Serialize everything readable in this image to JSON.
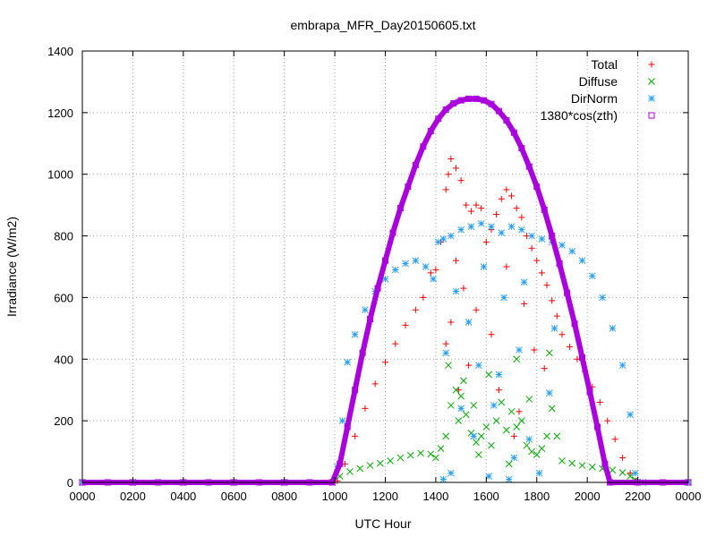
{
  "chart_data": {
    "type": "scatter",
    "title": "embrapa_MFR_Day20150605.txt",
    "xlabel": "UTC Hour",
    "ylabel": "Irradiance (W/m2)",
    "xlim": [
      0,
      24
    ],
    "ylim": [
      0,
      1400
    ],
    "x_ticks": [
      {
        "value": 0,
        "label": "0000"
      },
      {
        "value": 2,
        "label": "0200"
      },
      {
        "value": 4,
        "label": "0400"
      },
      {
        "value": 6,
        "label": "0600"
      },
      {
        "value": 8,
        "label": "0800"
      },
      {
        "value": 10,
        "label": "1000"
      },
      {
        "value": 12,
        "label": "1200"
      },
      {
        "value": 14,
        "label": "1400"
      },
      {
        "value": 16,
        "label": "1600"
      },
      {
        "value": 18,
        "label": "1800"
      },
      {
        "value": 20,
        "label": "2000"
      },
      {
        "value": 22,
        "label": "2200"
      },
      {
        "value": 24,
        "label": "0000"
      }
    ],
    "y_ticks": [
      0,
      200,
      400,
      600,
      800,
      1000,
      1200,
      1400
    ],
    "grid": true,
    "legend_position": "top-right",
    "series": [
      {
        "name": "Total",
        "marker": "plus",
        "color": "#ff0000",
        "points": [
          [
            0,
            0
          ],
          [
            2,
            0
          ],
          [
            4,
            0
          ],
          [
            6,
            0
          ],
          [
            8,
            0
          ],
          [
            9.9,
            0
          ],
          [
            10.1,
            5
          ],
          [
            10.4,
            60
          ],
          [
            10.8,
            150
          ],
          [
            11.2,
            240
          ],
          [
            11.6,
            320
          ],
          [
            12.0,
            390
          ],
          [
            12.4,
            450
          ],
          [
            12.8,
            510
          ],
          [
            13.2,
            560
          ],
          [
            13.5,
            600
          ],
          [
            13.8,
            680
          ],
          [
            14.0,
            690
          ],
          [
            14.2,
            780
          ],
          [
            14.4,
            950
          ],
          [
            14.5,
            1000
          ],
          [
            14.6,
            1050
          ],
          [
            14.8,
            1020
          ],
          [
            15.0,
            980
          ],
          [
            15.2,
            900
          ],
          [
            15.4,
            880
          ],
          [
            15.6,
            900
          ],
          [
            15.8,
            890
          ],
          [
            16.0,
            780
          ],
          [
            16.2,
            820
          ],
          [
            16.4,
            870
          ],
          [
            16.6,
            920
          ],
          [
            16.8,
            950
          ],
          [
            17.0,
            930
          ],
          [
            17.2,
            890
          ],
          [
            17.4,
            860
          ],
          [
            17.6,
            800
          ],
          [
            17.8,
            760
          ],
          [
            18.0,
            720
          ],
          [
            18.2,
            680
          ],
          [
            18.4,
            640
          ],
          [
            18.6,
            590
          ],
          [
            18.8,
            540
          ],
          [
            19.0,
            480
          ],
          [
            19.3,
            440
          ],
          [
            19.6,
            400
          ],
          [
            19.9,
            360
          ],
          [
            20.2,
            310
          ],
          [
            20.5,
            260
          ],
          [
            20.8,
            200
          ],
          [
            21.1,
            140
          ],
          [
            21.4,
            80
          ],
          [
            21.7,
            30
          ],
          [
            21.9,
            5
          ],
          [
            22.2,
            0
          ],
          [
            24,
            0
          ],
          [
            14.4,
            450
          ],
          [
            14.6,
            520
          ],
          [
            14.9,
            300
          ],
          [
            15.3,
            380
          ],
          [
            15.6,
            560
          ],
          [
            16.2,
            480
          ],
          [
            16.5,
            300
          ],
          [
            17.1,
            150
          ],
          [
            17.5,
            580
          ],
          [
            17.9,
            430
          ],
          [
            18.3,
            370
          ],
          [
            15.1,
            630
          ],
          [
            14.8,
            720
          ],
          [
            16.8,
            700
          ],
          [
            17.3,
            230
          ]
        ]
      },
      {
        "name": "Diffuse",
        "marker": "cross",
        "color": "#00aa00",
        "points": [
          [
            0,
            0
          ],
          [
            2,
            0
          ],
          [
            4,
            0
          ],
          [
            6,
            0
          ],
          [
            8,
            0
          ],
          [
            9.9,
            0
          ],
          [
            10.2,
            20
          ],
          [
            10.6,
            35
          ],
          [
            11.0,
            45
          ],
          [
            11.4,
            55
          ],
          [
            11.8,
            62
          ],
          [
            12.2,
            70
          ],
          [
            12.6,
            80
          ],
          [
            13.0,
            88
          ],
          [
            13.4,
            95
          ],
          [
            13.8,
            92
          ],
          [
            14.0,
            80
          ],
          [
            14.2,
            110
          ],
          [
            14.4,
            150
          ],
          [
            14.6,
            250
          ],
          [
            14.8,
            300
          ],
          [
            15.0,
            280
          ],
          [
            15.2,
            220
          ],
          [
            15.4,
            160
          ],
          [
            15.6,
            130
          ],
          [
            15.8,
            150
          ],
          [
            16.0,
            180
          ],
          [
            16.2,
            120
          ],
          [
            16.4,
            200
          ],
          [
            16.6,
            260
          ],
          [
            16.8,
            170
          ],
          [
            17.0,
            230
          ],
          [
            17.2,
            180
          ],
          [
            17.4,
            200
          ],
          [
            17.6,
            120
          ],
          [
            17.8,
            100
          ],
          [
            18.0,
            90
          ],
          [
            18.2,
            110
          ],
          [
            18.4,
            150
          ],
          [
            18.6,
            240
          ],
          [
            18.8,
            150
          ],
          [
            19.0,
            70
          ],
          [
            19.4,
            62
          ],
          [
            19.8,
            55
          ],
          [
            20.2,
            50
          ],
          [
            20.6,
            45
          ],
          [
            21.0,
            40
          ],
          [
            21.4,
            32
          ],
          [
            21.7,
            20
          ],
          [
            21.9,
            8
          ],
          [
            22.2,
            0
          ],
          [
            24,
            0
          ],
          [
            14.5,
            380
          ],
          [
            15.1,
            330
          ],
          [
            16.1,
            350
          ],
          [
            17.2,
            400
          ],
          [
            18.5,
            420
          ],
          [
            15.7,
            90
          ],
          [
            16.9,
            60
          ],
          [
            14.9,
            200
          ],
          [
            15.5,
            250
          ],
          [
            17.7,
            270
          ]
        ]
      },
      {
        "name": "DirNorm",
        "marker": "star",
        "color": "#2a9fef",
        "points": [
          [
            0,
            0
          ],
          [
            2,
            0
          ],
          [
            4,
            0
          ],
          [
            6,
            0
          ],
          [
            8,
            0
          ],
          [
            9.9,
            0
          ],
          [
            10.1,
            50
          ],
          [
            10.3,
            200
          ],
          [
            10.5,
            390
          ],
          [
            10.8,
            480
          ],
          [
            11.2,
            560
          ],
          [
            11.6,
            620
          ],
          [
            12.0,
            660
          ],
          [
            12.4,
            690
          ],
          [
            12.8,
            710
          ],
          [
            13.2,
            720
          ],
          [
            13.6,
            700
          ],
          [
            13.9,
            660
          ],
          [
            14.1,
            780
          ],
          [
            14.3,
            790
          ],
          [
            14.6,
            800
          ],
          [
            15.0,
            820
          ],
          [
            15.4,
            830
          ],
          [
            15.8,
            840
          ],
          [
            16.2,
            830
          ],
          [
            16.6,
            810
          ],
          [
            17.0,
            830
          ],
          [
            17.4,
            820
          ],
          [
            17.8,
            800
          ],
          [
            18.2,
            790
          ],
          [
            18.6,
            780
          ],
          [
            19.0,
            770
          ],
          [
            19.4,
            750
          ],
          [
            19.8,
            720
          ],
          [
            20.2,
            670
          ],
          [
            20.6,
            600
          ],
          [
            21.0,
            500
          ],
          [
            21.4,
            380
          ],
          [
            21.7,
            220
          ],
          [
            21.9,
            30
          ],
          [
            22.2,
            0
          ],
          [
            24,
            0
          ],
          [
            14.3,
            10
          ],
          [
            14.6,
            30
          ],
          [
            15.0,
            240
          ],
          [
            15.3,
            520
          ],
          [
            15.7,
            380
          ],
          [
            16.1,
            20
          ],
          [
            16.5,
            350
          ],
          [
            16.9,
            10
          ],
          [
            17.3,
            430
          ],
          [
            17.7,
            140
          ],
          [
            18.1,
            30
          ],
          [
            18.5,
            290
          ],
          [
            14.8,
            620
          ],
          [
            15.9,
            700
          ],
          [
            16.7,
            600
          ],
          [
            17.5,
            650
          ],
          [
            18.7,
            500
          ],
          [
            14.4,
            420
          ],
          [
            15.5,
            150
          ],
          [
            16.3,
            250
          ],
          [
            17.1,
            80
          ]
        ]
      },
      {
        "name": "1380*cos(zth)",
        "marker": "square",
        "color": "#aa00dd",
        "points": [
          [
            0,
            0
          ],
          [
            1,
            0
          ],
          [
            2,
            0
          ],
          [
            3,
            0
          ],
          [
            4,
            0
          ],
          [
            5,
            0
          ],
          [
            6,
            0
          ],
          [
            7,
            0
          ],
          [
            8,
            0
          ],
          [
            9,
            0
          ],
          [
            9.9,
            0
          ],
          [
            10.2,
            60
          ],
          [
            10.5,
            180
          ],
          [
            10.8,
            300
          ],
          [
            11.1,
            420
          ],
          [
            11.4,
            530
          ],
          [
            11.7,
            630
          ],
          [
            12.0,
            720
          ],
          [
            12.3,
            810
          ],
          [
            12.6,
            890
          ],
          [
            12.9,
            960
          ],
          [
            13.2,
            1030
          ],
          [
            13.5,
            1090
          ],
          [
            13.8,
            1140
          ],
          [
            14.1,
            1180
          ],
          [
            14.4,
            1210
          ],
          [
            14.7,
            1230
          ],
          [
            15.0,
            1240
          ],
          [
            15.3,
            1245
          ],
          [
            15.6,
            1245
          ],
          [
            15.9,
            1240
          ],
          [
            16.2,
            1228
          ],
          [
            16.5,
            1205
          ],
          [
            16.8,
            1175
          ],
          [
            17.1,
            1135
          ],
          [
            17.4,
            1085
          ],
          [
            17.7,
            1025
          ],
          [
            18.0,
            960
          ],
          [
            18.3,
            885
          ],
          [
            18.6,
            800
          ],
          [
            18.9,
            710
          ],
          [
            19.2,
            615
          ],
          [
            19.5,
            515
          ],
          [
            19.8,
            405
          ],
          [
            20.1,
            295
          ],
          [
            20.4,
            180
          ],
          [
            20.7,
            60
          ],
          [
            20.9,
            0
          ],
          [
            22,
            0
          ],
          [
            23,
            0
          ],
          [
            24,
            0
          ]
        ]
      }
    ]
  }
}
